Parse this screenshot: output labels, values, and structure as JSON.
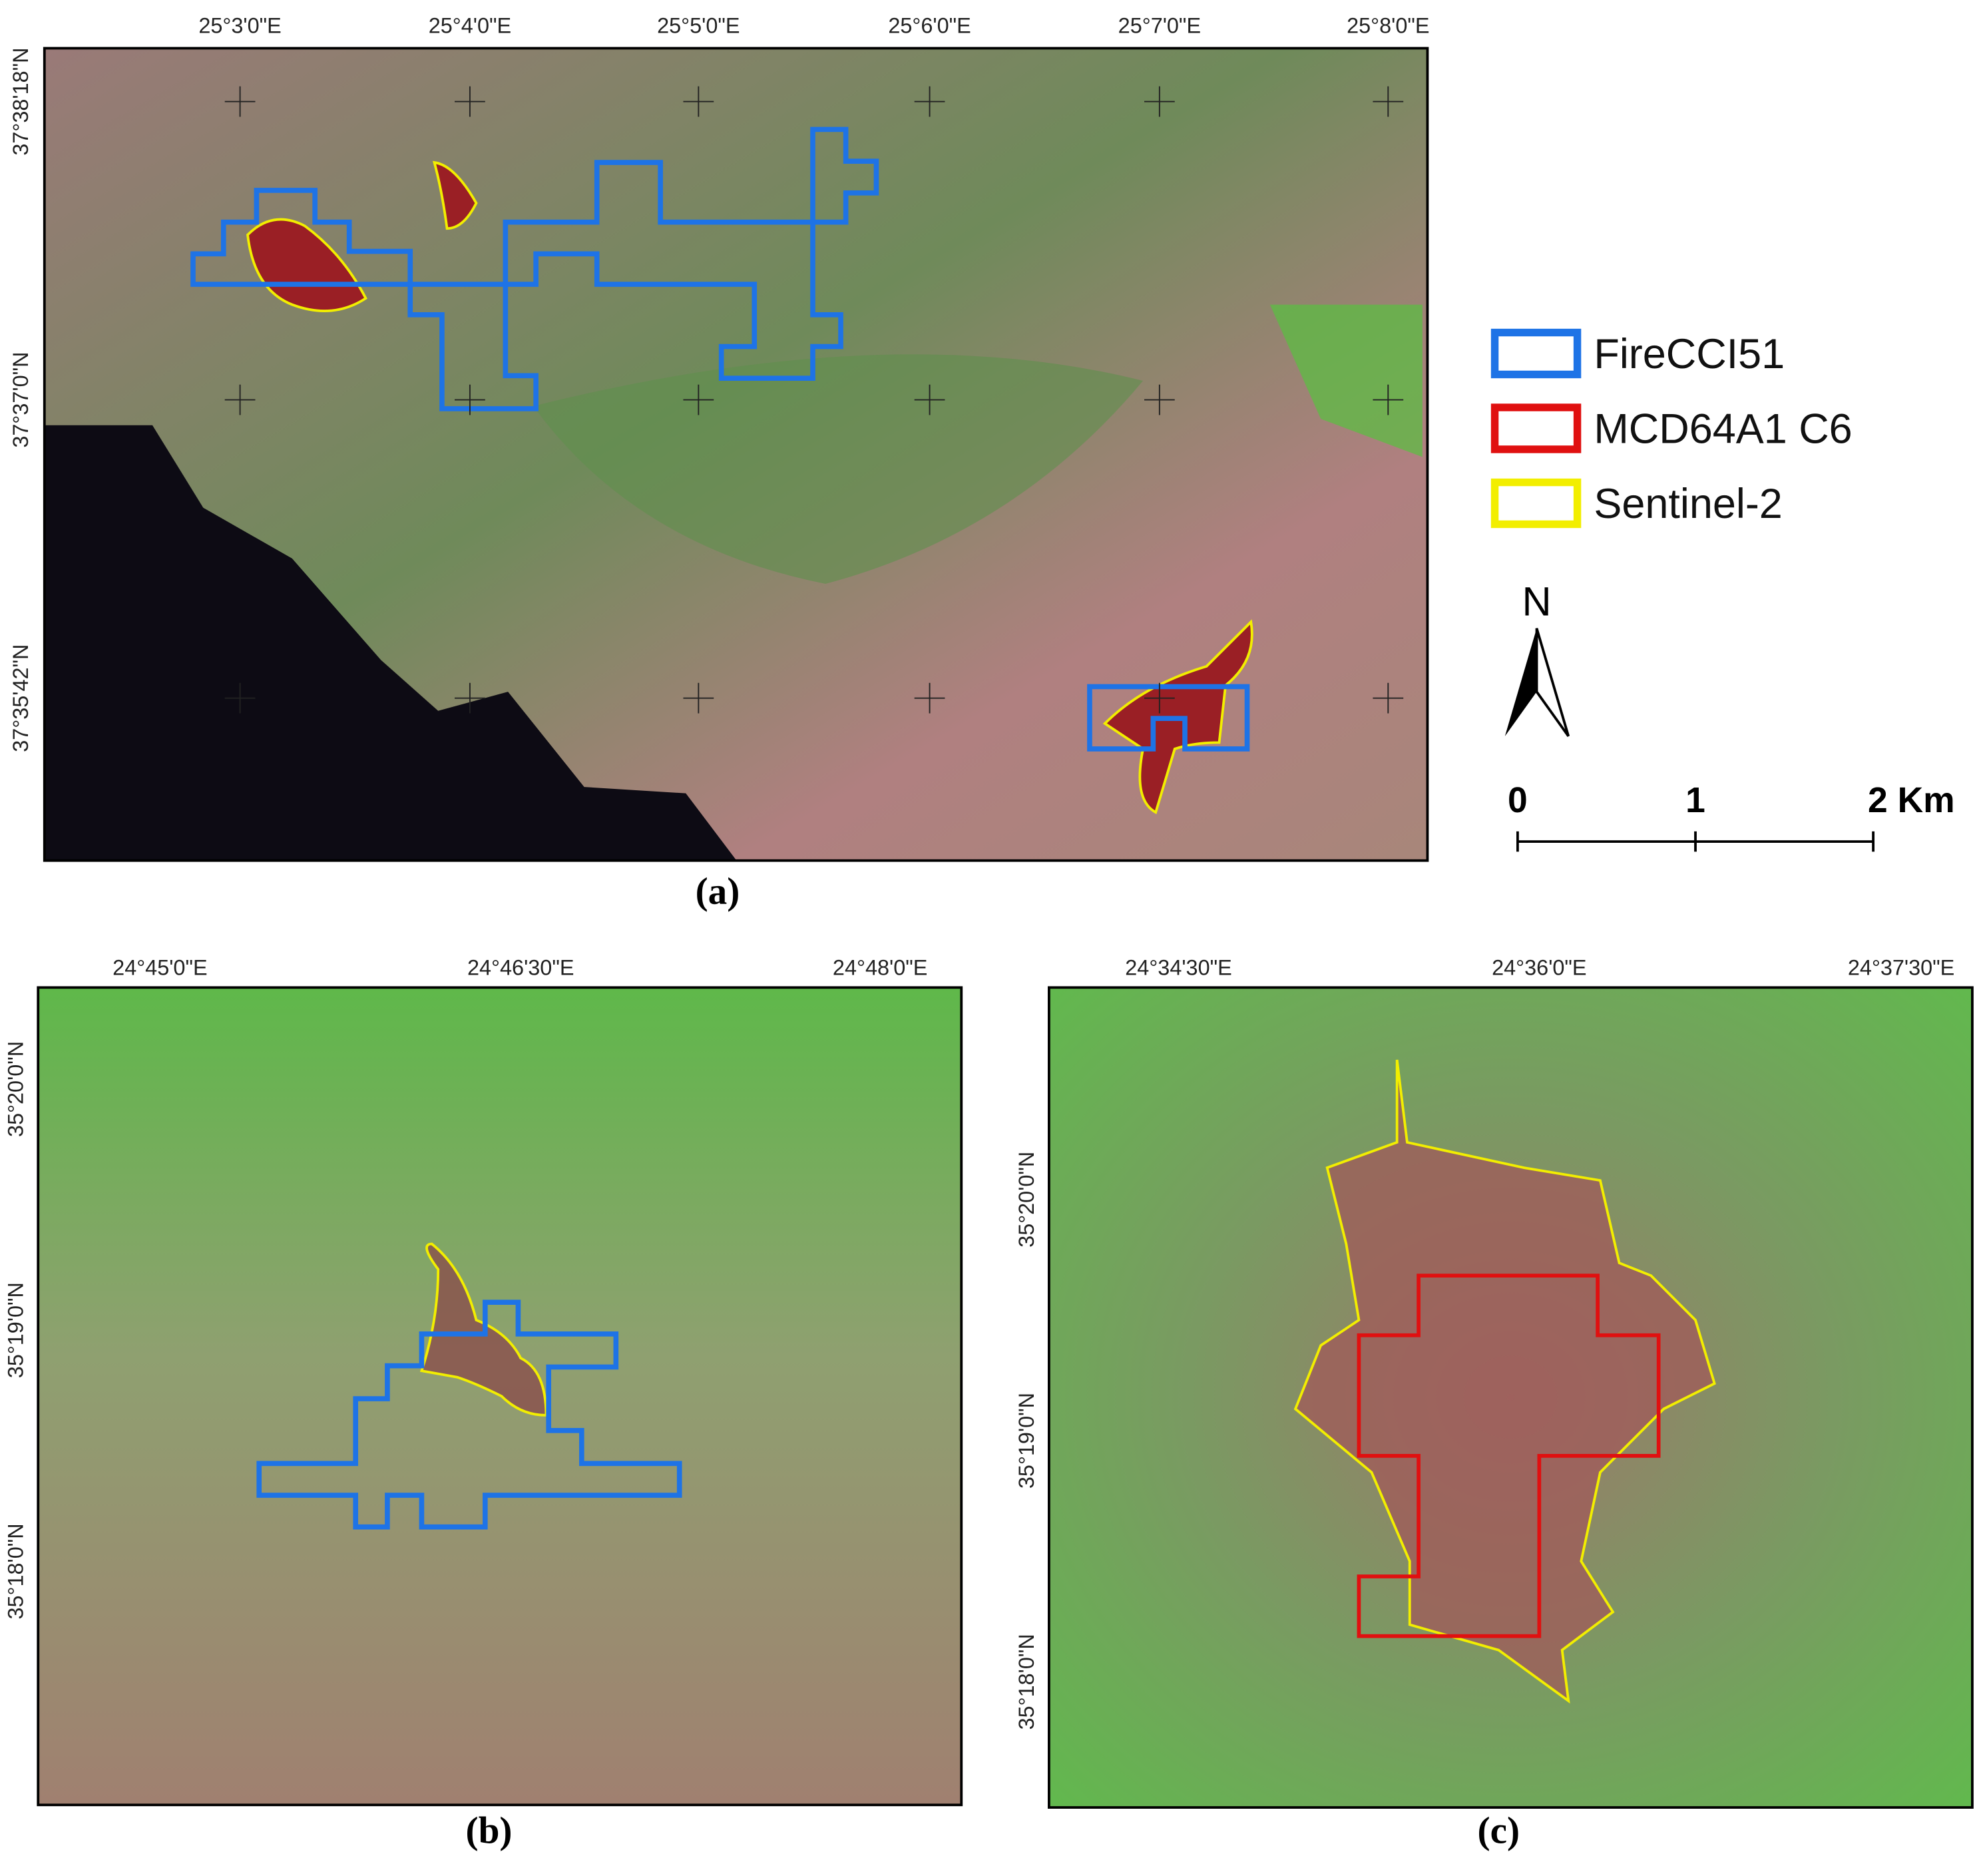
{
  "panels": [
    {
      "label": "(a)",
      "top_ticks": [
        "25°3'0\"E",
        "25°4'0\"E",
        "25°5'0\"E",
        "25°6'0\"E",
        "25°7'0\"E",
        "25°8'0\"E"
      ],
      "left_ticks": [
        "37°38'18\"N",
        "37°37'0\"N",
        "37°35'42\"N"
      ]
    },
    {
      "label": "(b)",
      "top_ticks": [
        "24°45'0\"E",
        "24°46'30\"E",
        "24°48'0\"E"
      ],
      "left_ticks": [
        "35°20'0\"N",
        "35°19'0\"N",
        "35°18'0\"N"
      ]
    },
    {
      "label": "(c)",
      "top_ticks": [
        "24°34'30\"E",
        "24°36'0\"E",
        "24°37'30\"E"
      ],
      "left_ticks": [
        "35°20'0\"N",
        "35°19'0\"N",
        "35°18'0\"N"
      ]
    }
  ],
  "legend": {
    "entries": [
      {
        "name": "FireCCI51",
        "color": "#1e73e6"
      },
      {
        "name": "MCD64A1 C6",
        "color": "#e01010"
      },
      {
        "name": "Sentinel-2",
        "color": "#f2ee00"
      }
    ]
  },
  "north_arrow": "N",
  "scale_bar": {
    "labels": [
      "0",
      "1",
      "2 Km"
    ]
  }
}
